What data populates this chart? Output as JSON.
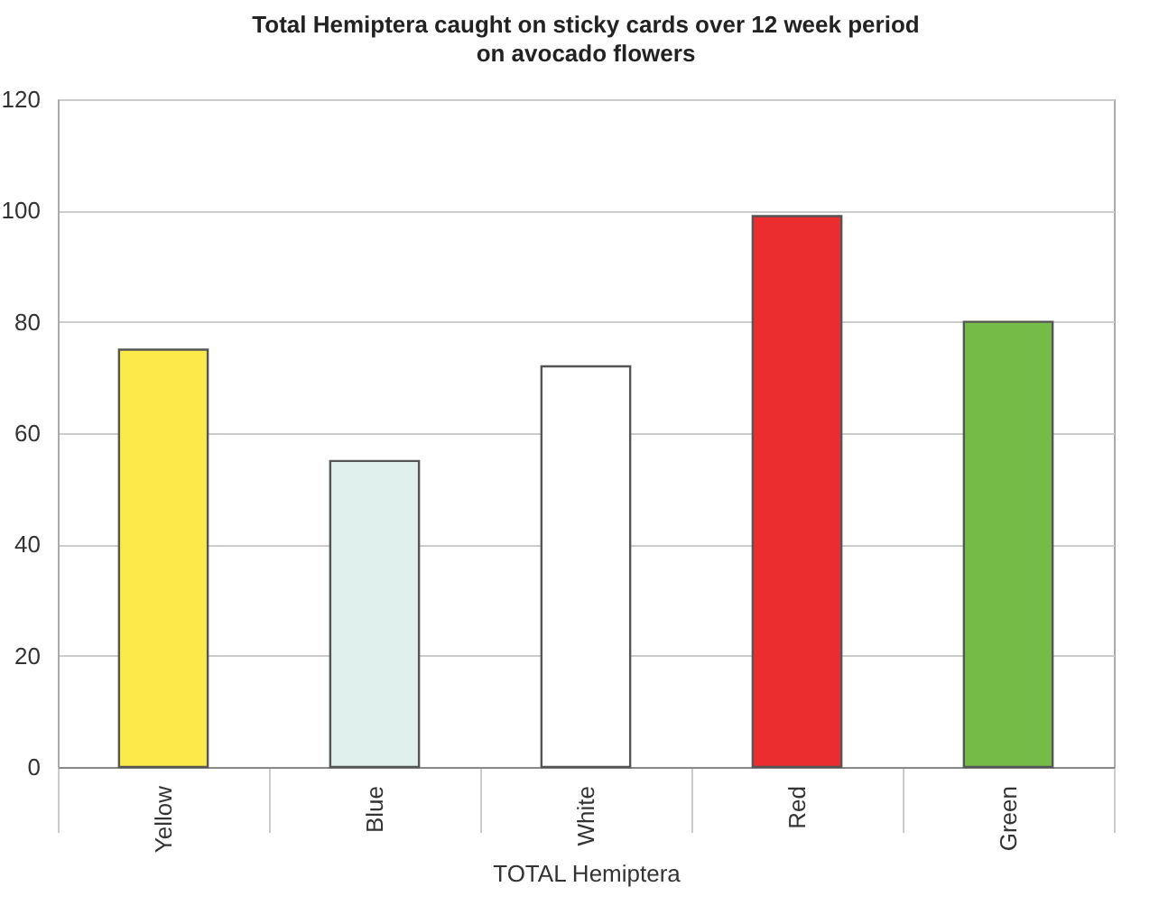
{
  "chart_data": {
    "type": "bar",
    "title": "Total Hemiptera caught on sticky cards over 12 week period on avocado flowers",
    "categories": [
      "Yellow",
      "Blue",
      "White",
      "Red",
      "Green"
    ],
    "values": [
      75,
      55,
      72,
      99,
      80
    ],
    "colors": [
      "#fce94a",
      "#e0f0ec",
      "#ffffff",
      "#ec2d2f",
      "#74bb48"
    ],
    "xlabel": "TOTAL Hemiptera",
    "ylim": [
      0,
      120
    ],
    "yticks": [
      0,
      20,
      40,
      60,
      80,
      100,
      120
    ],
    "grid": "y"
  }
}
